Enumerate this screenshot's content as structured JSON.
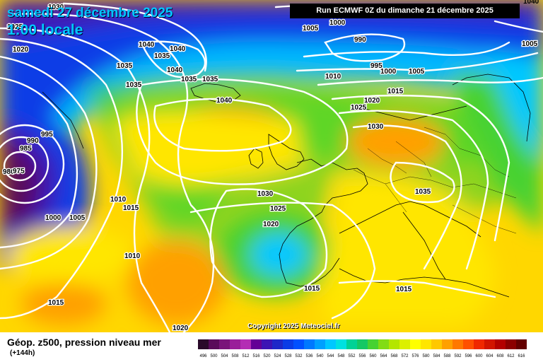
{
  "title": {
    "date": "samedi 27 décembre 2025",
    "hour": "1:00 locale"
  },
  "run": "Run ECMWF 0Z du dimanche 21 décembre 2025",
  "corner": "1040",
  "copyright": "Copyright 2025 Meteociel.fr",
  "legend": {
    "title": "Géop. z500, pression niveau mer",
    "subtitle": "(+144h)",
    "ticks": [
      "496",
      "500",
      "504",
      "508",
      "512",
      "516",
      "520",
      "524",
      "528",
      "532",
      "536",
      "540",
      "544",
      "548",
      "552",
      "556",
      "560",
      "564",
      "568",
      "572",
      "576",
      "580",
      "584",
      "588",
      "592",
      "596",
      "600",
      "604",
      "608",
      "612",
      "616"
    ],
    "colors": [
      "#2a0a2a",
      "#5a0a5a",
      "#7a147a",
      "#9a1e9a",
      "#b42db4",
      "#640096",
      "#3c14b4",
      "#1e28c8",
      "#0a3ce6",
      "#0050ff",
      "#0078ff",
      "#00a0ff",
      "#00c8ff",
      "#00e1e1",
      "#00d296",
      "#14c864",
      "#46d232",
      "#82dc14",
      "#b4e600",
      "#dcf000",
      "#ffff00",
      "#ffe600",
      "#ffc800",
      "#ffa000",
      "#ff7800",
      "#ff5000",
      "#f02800",
      "#d21400",
      "#b40000",
      "#8c0000",
      "#640000"
    ]
  },
  "isobars": [
    {
      "text": "1030",
      "bx": 68,
      "by": 4
    },
    {
      "text": "1025",
      "bx": 10,
      "by": 32
    },
    {
      "text": "1020",
      "bx": 18,
      "by": 64
    },
    {
      "text": "1040",
      "bx": 196,
      "by": 57
    },
    {
      "text": "1040",
      "bx": 240,
      "by": 63
    },
    {
      "text": "1035",
      "bx": 218,
      "by": 73
    },
    {
      "text": "1035",
      "bx": 165,
      "by": 87
    },
    {
      "text": "1040",
      "bx": 236,
      "by": 93
    },
    {
      "text": "1035",
      "bx": 256,
      "by": 106
    },
    {
      "text": "1035",
      "bx": 286,
      "by": 106
    },
    {
      "text": "1035",
      "bx": 178,
      "by": 114
    },
    {
      "text": "1040",
      "bx": 306,
      "by": 136
    },
    {
      "text": "995",
      "bx": 58,
      "by": 184
    },
    {
      "text": "990",
      "bx": 38,
      "by": 193
    },
    {
      "text": "985",
      "bx": 28,
      "by": 204
    },
    {
      "text": "980",
      "bx": 4,
      "by": 237
    },
    {
      "text": "975",
      "bx": 18,
      "by": 236
    },
    {
      "text": "1010",
      "bx": 156,
      "by": 276
    },
    {
      "text": "1015",
      "bx": 174,
      "by": 288
    },
    {
      "text": "1000",
      "bx": 64,
      "by": 302
    },
    {
      "text": "1005",
      "bx": 98,
      "by": 302
    },
    {
      "text": "1010",
      "bx": 176,
      "by": 356
    },
    {
      "text": "1015",
      "bx": 68,
      "by": 422
    },
    {
      "text": "1020",
      "bx": 244,
      "by": 458
    },
    {
      "text": "1005",
      "bx": 428,
      "by": 34
    },
    {
      "text": "1000",
      "bx": 466,
      "by": 26
    },
    {
      "text": "990",
      "bx": 501,
      "by": 50
    },
    {
      "text": "995",
      "bx": 524,
      "by": 87
    },
    {
      "text": "1000",
      "bx": 538,
      "by": 95
    },
    {
      "text": "1005",
      "bx": 578,
      "by": 95
    },
    {
      "text": "1010",
      "bx": 460,
      "by": 102
    },
    {
      "text": "1005",
      "bx": 738,
      "by": 56
    },
    {
      "text": "1015",
      "bx": 548,
      "by": 123
    },
    {
      "text": "1020",
      "bx": 515,
      "by": 136
    },
    {
      "text": "1025",
      "bx": 496,
      "by": 146
    },
    {
      "text": "1030",
      "bx": 520,
      "by": 173
    },
    {
      "text": "1030",
      "bx": 364,
      "by": 268
    },
    {
      "text": "1025",
      "bx": 382,
      "by": 289
    },
    {
      "text": "1035",
      "bx": 587,
      "by": 265
    },
    {
      "text": "1020",
      "bx": 372,
      "by": 311
    },
    {
      "text": "1015",
      "bx": 430,
      "by": 402
    },
    {
      "text": "1015",
      "bx": 560,
      "by": 403
    }
  ]
}
